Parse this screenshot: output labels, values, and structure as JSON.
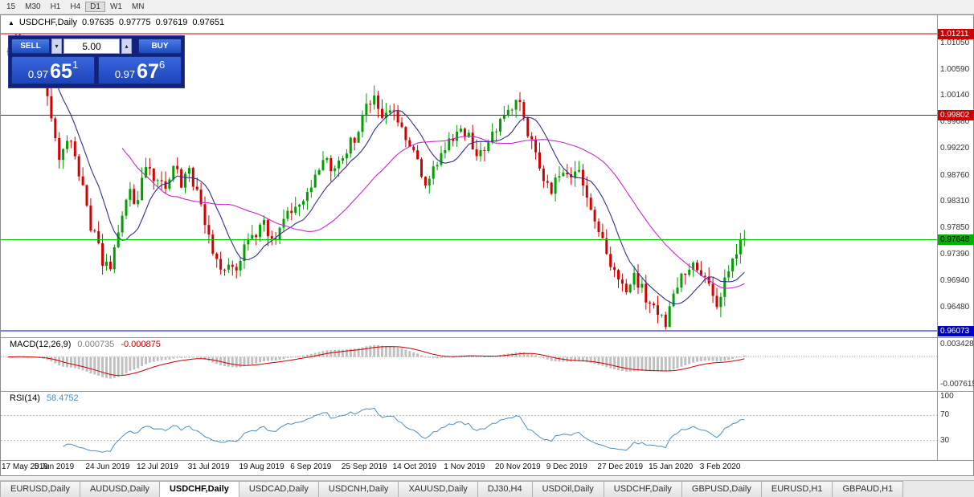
{
  "toolbar": {
    "timeframes": [
      {
        "label": "15",
        "active": false
      },
      {
        "label": "M30",
        "active": false
      },
      {
        "label": "H1",
        "active": false
      },
      {
        "label": "H4",
        "active": false
      },
      {
        "label": "D1",
        "active": true
      },
      {
        "label": "W1",
        "active": false
      },
      {
        "label": "MN",
        "active": false
      }
    ]
  },
  "chart": {
    "symbol_label": "USDCHF,Daily",
    "ohlc": {
      "open": "0.97635",
      "high": "0.97775",
      "low": "0.97619",
      "close": "0.97651"
    }
  },
  "trade_panel": {
    "sell_label": "SELL",
    "buy_label": "BUY",
    "volume": "5.00",
    "sell_price": {
      "big_figure": "0.97",
      "pips": "65",
      "pipette": "1"
    },
    "buy_price": {
      "big_figure": "0.97",
      "pips": "67",
      "pipette": "6"
    },
    "panel_color": "#14207c",
    "button_color": "#2c5cd8"
  },
  "price_axis": {
    "ticks": [
      "1.01050",
      "1.00590",
      "1.00140",
      "0.99680",
      "0.99220",
      "0.98760",
      "0.98310",
      "0.97850",
      "0.97390",
      "0.96940",
      "0.96480"
    ],
    "tick_values": [
      1.0105,
      1.0059,
      1.0014,
      0.9968,
      0.9922,
      0.9876,
      0.9831,
      0.9785,
      0.9739,
      0.9694,
      0.9648
    ],
    "badges": [
      {
        "label": "1.01211",
        "value": 1.01211,
        "color": "#cc0000",
        "text": "#ffffff"
      },
      {
        "label": "0.99802",
        "value": 0.99802,
        "color": "#cc0000",
        "text": "#ffffff"
      },
      {
        "label": "0.97648",
        "value": 0.97648,
        "color": "#00b200",
        "text": "#000000"
      },
      {
        "label": "0.96073",
        "value": 0.96073,
        "color": "#0000c8",
        "text": "#ffffff"
      }
    ]
  },
  "macd": {
    "label": "MACD(12,26,9)",
    "value_main": "0.000735",
    "value_signal": "-0.000875",
    "axis_top": "0.003428",
    "axis_bottom": "-0.007615",
    "axis_top_value": 0.003428,
    "axis_bottom_value": -0.007615
  },
  "rsi": {
    "label": "RSI(14)",
    "value": "58.4752",
    "axis_ticks": [
      {
        "label": "100",
        "value": 100
      },
      {
        "label": "70",
        "value": 70
      },
      {
        "label": "30",
        "value": 30
      }
    ],
    "levels": [
      70,
      30
    ]
  },
  "dates": [
    "17 May 2019",
    "5 Jun 2019",
    "24 Jun 2019",
    "12 Jul 2019",
    "31 Jul 2019",
    "19 Aug 2019",
    "6 Sep 2019",
    "25 Sep 2019",
    "14 Oct 2019",
    "1 Nov 2019",
    "20 Nov 2019",
    "9 Dec 2019",
    "27 Dec 2019",
    "15 Jan 2020",
    "3 Feb 2020"
  ],
  "tabs": [
    {
      "label": "EURUSD,Daily",
      "active": false
    },
    {
      "label": "AUDUSD,Daily",
      "active": false
    },
    {
      "label": "USDCHF,Daily",
      "active": true
    },
    {
      "label": "USDCAD,Daily",
      "active": false
    },
    {
      "label": "USDCNH,Daily",
      "active": false
    },
    {
      "label": "XAUUSD,Daily",
      "active": false
    },
    {
      "label": "DJ30,H4",
      "active": false
    },
    {
      "label": "USDOil,Daily",
      "active": false
    },
    {
      "label": "USDCHF,Daily",
      "active": false
    },
    {
      "label": "GBPUSD,Daily",
      "active": false
    },
    {
      "label": "EURUSD,H1",
      "active": false
    },
    {
      "label": "GBPAUD,H1",
      "active": false
    }
  ],
  "chart_data": {
    "type": "candlestick",
    "symbol": "USDCHF",
    "timeframe": "Daily",
    "x_range": [
      "17 May 2019",
      "7 Feb 2020"
    ],
    "y_range": [
      0.96073,
      1.01211
    ],
    "candle_count": 188,
    "date_tick_step": 13,
    "noise": 0.0022,
    "up_color": "#00a000",
    "down_color": "#d40000",
    "close_anchors": [
      [
        0,
        1.0085
      ],
      [
        2,
        1.0118
      ],
      [
        4,
        1.007
      ],
      [
        7,
        1.0085
      ],
      [
        10,
        1.001
      ],
      [
        13,
        0.9905
      ],
      [
        15,
        0.9945
      ],
      [
        18,
        0.9885
      ],
      [
        21,
        0.979
      ],
      [
        24,
        0.973
      ],
      [
        26,
        0.9705
      ],
      [
        28,
        0.978
      ],
      [
        31,
        0.9845
      ],
      [
        33,
        0.9825
      ],
      [
        35,
        0.99
      ],
      [
        38,
        0.9865
      ],
      [
        40,
        0.9855
      ],
      [
        42,
        0.99
      ],
      [
        44,
        0.986
      ],
      [
        46,
        0.9885
      ],
      [
        48,
        0.9845
      ],
      [
        50,
        0.98
      ],
      [
        52,
        0.974
      ],
      [
        54,
        0.9705
      ],
      [
        56,
        0.973
      ],
      [
        58,
        0.9715
      ],
      [
        60,
        0.9755
      ],
      [
        62,
        0.9775
      ],
      [
        65,
        0.979
      ],
      [
        67,
        0.9765
      ],
      [
        70,
        0.9795
      ],
      [
        73,
        0.9825
      ],
      [
        76,
        0.985
      ],
      [
        78,
        0.9875
      ],
      [
        80,
        0.9905
      ],
      [
        83,
        0.9885
      ],
      [
        86,
        0.992
      ],
      [
        89,
        0.9955
      ],
      [
        91,
        0.9995
      ],
      [
        93,
        1.0012
      ],
      [
        95,
        0.997
      ],
      [
        97,
        0.999
      ],
      [
        99,
        0.9965
      ],
      [
        101,
        0.994
      ],
      [
        104,
        0.9895
      ],
      [
        106,
        0.986
      ],
      [
        109,
        0.9895
      ],
      [
        112,
        0.993
      ],
      [
        115,
        0.995
      ],
      [
        117,
        0.9955
      ],
      [
        119,
        0.9905
      ],
      [
        122,
        0.9935
      ],
      [
        125,
        0.9965
      ],
      [
        128,
        0.9995
      ],
      [
        130,
        1.0005
      ],
      [
        132,
        0.995
      ],
      [
        134,
        0.9905
      ],
      [
        136,
        0.987
      ],
      [
        138,
        0.9855
      ],
      [
        140,
        0.988
      ],
      [
        143,
        0.9865
      ],
      [
        145,
        0.988
      ],
      [
        147,
        0.9845
      ],
      [
        149,
        0.98
      ],
      [
        151,
        0.9765
      ],
      [
        153,
        0.9725
      ],
      [
        155,
        0.9692
      ],
      [
        157,
        0.9668
      ],
      [
        159,
        0.97
      ],
      [
        161,
        0.9682
      ],
      [
        163,
        0.9652
      ],
      [
        165,
        0.9638
      ],
      [
        167,
        0.9622
      ],
      [
        169,
        0.9672
      ],
      [
        171,
        0.9698
      ],
      [
        173,
        0.9716
      ],
      [
        175,
        0.9722
      ],
      [
        177,
        0.9704
      ],
      [
        179,
        0.9668
      ],
      [
        180,
        0.9652
      ],
      [
        182,
        0.9698
      ],
      [
        184,
        0.973
      ],
      [
        186,
        0.9756
      ],
      [
        187,
        0.9764
      ]
    ],
    "horizontal_lines": [
      {
        "value": 1.01211,
        "color": "#cc0000",
        "on_top": false,
        "name": "resistance-upper"
      },
      {
        "value": 0.99802,
        "color": "#cc0000",
        "on_top": false,
        "name": "resistance-lower"
      },
      {
        "value": 0.97648,
        "color": "#00c800",
        "on_top": true,
        "name": "bid-line"
      },
      {
        "value": 0.96073,
        "color": "#0000c8",
        "on_top": false,
        "name": "support"
      }
    ],
    "moving_averages": [
      {
        "period": 10,
        "color": "#2e3192"
      },
      {
        "period": 30,
        "color": "#c929c9"
      }
    ],
    "indicators": [
      {
        "name": "MACD",
        "params": [
          12,
          26,
          9
        ],
        "main": 0.000735,
        "signal": -0.000875,
        "axis_max": 0.003428,
        "axis_min": -0.007615
      },
      {
        "name": "RSI",
        "params": [
          14
        ],
        "value": 58.4752,
        "levels": [
          70,
          30
        ],
        "axis": [
          100,
          70,
          30
        ]
      }
    ]
  }
}
